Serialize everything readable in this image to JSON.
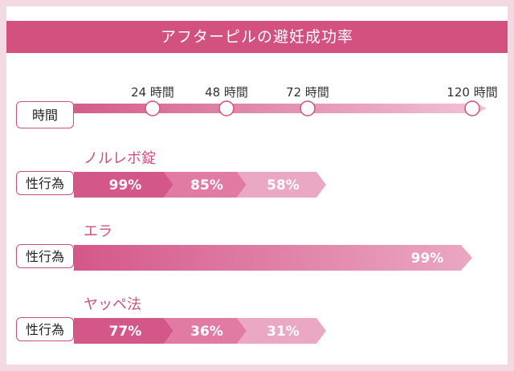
{
  "title": "アフターピルの避妊成功率",
  "chart_data": {
    "type": "bar",
    "timeline_label": "時間",
    "time_ticks": [
      "24 時間",
      "48 時間",
      "72 時間",
      "120 時間"
    ],
    "row_label": "性行為",
    "series": [
      {
        "name": "ノルレボ錠",
        "values": [
          "99%",
          "85%",
          "58%"
        ]
      },
      {
        "name": "エラ",
        "values": [
          "99%"
        ]
      },
      {
        "name": "ヤッペ法",
        "values": [
          "77%",
          "36%",
          "31%"
        ]
      }
    ]
  },
  "colors": {
    "accent": "#d2517f",
    "seg_dark": "#d4578a",
    "seg_mid": "#e27ba3",
    "seg_light": "#eba8c2",
    "timeline_start": "#d45d8a",
    "timeline_end": "#f2c3d4",
    "background": "#f3d9e2"
  }
}
